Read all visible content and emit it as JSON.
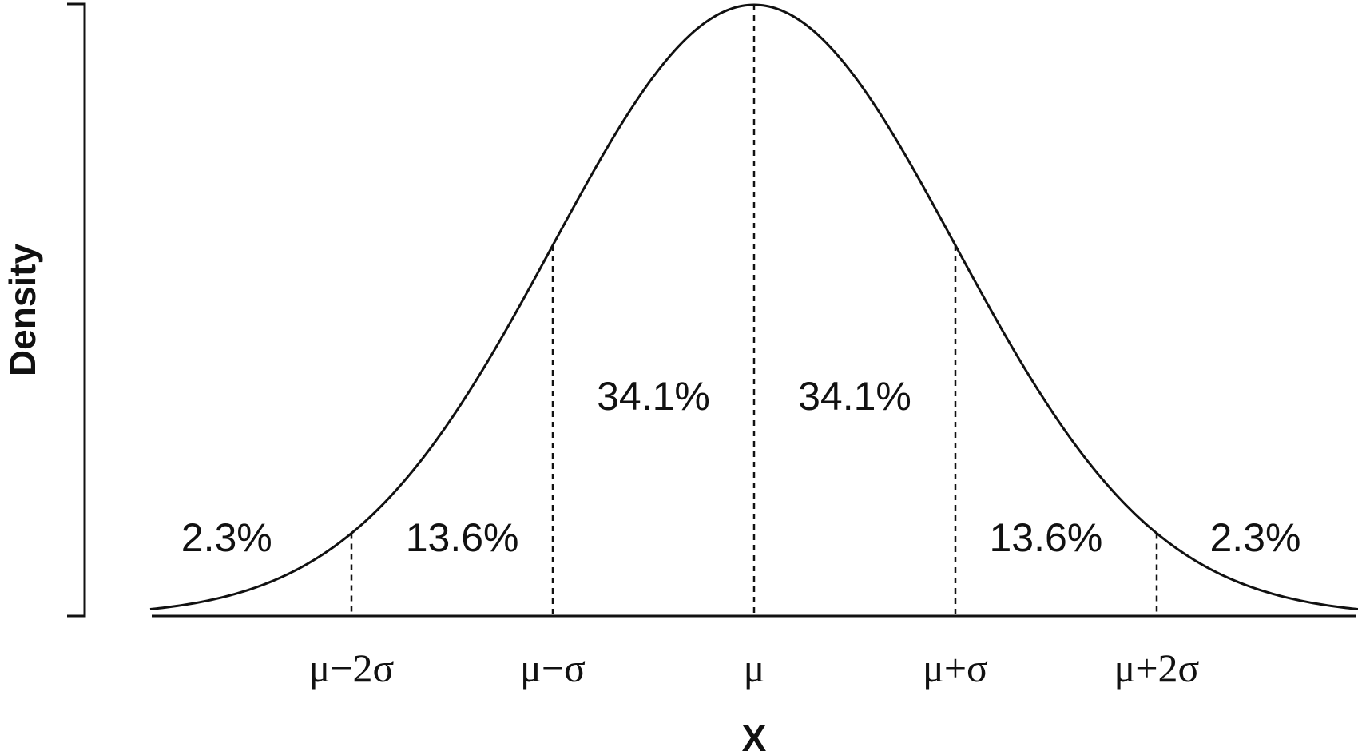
{
  "chart_data": {
    "type": "area",
    "xlabel": "X",
    "ylabel": "Density",
    "distribution": "normal",
    "x_range_sigma": [
      -3,
      3
    ],
    "ticks": [
      {
        "sigma": -2,
        "label": "μ−2σ"
      },
      {
        "sigma": -1,
        "label": "μ−σ"
      },
      {
        "sigma": 0,
        "label": "μ"
      },
      {
        "sigma": 1,
        "label": "μ+σ"
      },
      {
        "sigma": 2,
        "label": "μ+2σ"
      }
    ],
    "regions": [
      {
        "from": null,
        "to": -2,
        "percent": 2.3,
        "label": "2.3%"
      },
      {
        "from": -2,
        "to": -1,
        "percent": 13.6,
        "label": "13.6%"
      },
      {
        "from": -1,
        "to": 0,
        "percent": 34.1,
        "label": "34.1%"
      },
      {
        "from": 0,
        "to": 1,
        "percent": 34.1,
        "label": "34.1%"
      },
      {
        "from": 1,
        "to": 2,
        "percent": 13.6,
        "label": "13.6%"
      },
      {
        "from": 2,
        "to": null,
        "percent": 2.3,
        "label": "2.3%"
      }
    ],
    "colors": {
      "curve": "#111111",
      "lines": "#111111"
    }
  }
}
